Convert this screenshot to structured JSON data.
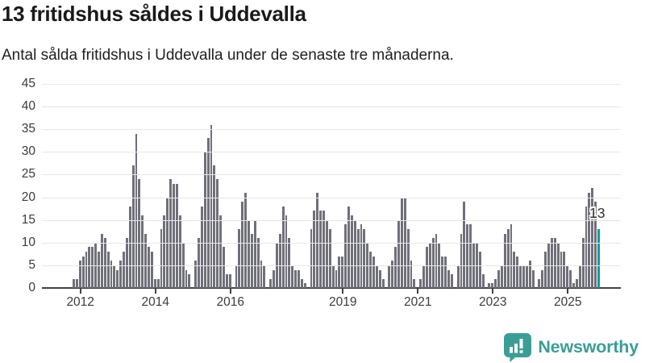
{
  "header": {
    "title": "13 fritidshus såldes i Uddevalla",
    "subtitle": "Antal sålda fritidshus i Uddevalla under de senaste tre månaderna."
  },
  "chart_data": {
    "type": "bar",
    "title": "13 fritidshus såldes i Uddevalla",
    "subtitle": "Antal sålda fritidshus i Uddevalla under de senaste tre månaderna.",
    "xlabel": "",
    "ylabel": "",
    "ylim": [
      0,
      45
    ],
    "yticks": [
      0,
      5,
      10,
      15,
      20,
      25,
      30,
      35,
      40,
      45
    ],
    "grid": "horizontal",
    "x_tick_labels": [
      "2012",
      "2014",
      "2016",
      "2019",
      "2021",
      "2023",
      "2025"
    ],
    "x_tick_month_index": [
      2,
      26,
      50,
      86,
      110,
      134,
      158
    ],
    "x_start_month": "2011-11",
    "x_end_month": "2025-11",
    "frequency": "monthly-rolling-3-months",
    "bar_color": "#70707a",
    "highlight_color": "#0a9ba1",
    "highlight_index": 168,
    "highlight_label": "13",
    "values": [
      2,
      2,
      6,
      7,
      8,
      9,
      9,
      10,
      8,
      12,
      11,
      8,
      6,
      5,
      4,
      6,
      8,
      11,
      18,
      27,
      34,
      24,
      16,
      12,
      9,
      8,
      2,
      2,
      13,
      16,
      20,
      24,
      23,
      23,
      16,
      10,
      4,
      3,
      0,
      6,
      11,
      18,
      30,
      33,
      36,
      27,
      24,
      16,
      9,
      3,
      3,
      0,
      5,
      13,
      19,
      21,
      15,
      12,
      15,
      11,
      6,
      5,
      0,
      2,
      4,
      10,
      12,
      18,
      16,
      11,
      5,
      4,
      4,
      2,
      1,
      0,
      13,
      17,
      21,
      17,
      17,
      15,
      13,
      5,
      4,
      7,
      7,
      14,
      18,
      16,
      15,
      13,
      14,
      13,
      10,
      8,
      7,
      5,
      4,
      2,
      0,
      5,
      6,
      9,
      15,
      20,
      20,
      13,
      6,
      2,
      0,
      2,
      5,
      9,
      10,
      11,
      12,
      10,
      7,
      7,
      4,
      3,
      0,
      5,
      12,
      19,
      14,
      14,
      10,
      10,
      8,
      3,
      0,
      1,
      1,
      2,
      4,
      5,
      12,
      13,
      14,
      8,
      7,
      5,
      5,
      5,
      6,
      4,
      0,
      2,
      4,
      8,
      10,
      11,
      11,
      10,
      8,
      8,
      5,
      4,
      1,
      2,
      5,
      11,
      18,
      21,
      22,
      19,
      13
    ]
  },
  "footer": {
    "brand": "Newsworthy",
    "brand_color": "#3a9e97",
    "logo_icon": "bar-chart-speech-bubble-icon"
  }
}
